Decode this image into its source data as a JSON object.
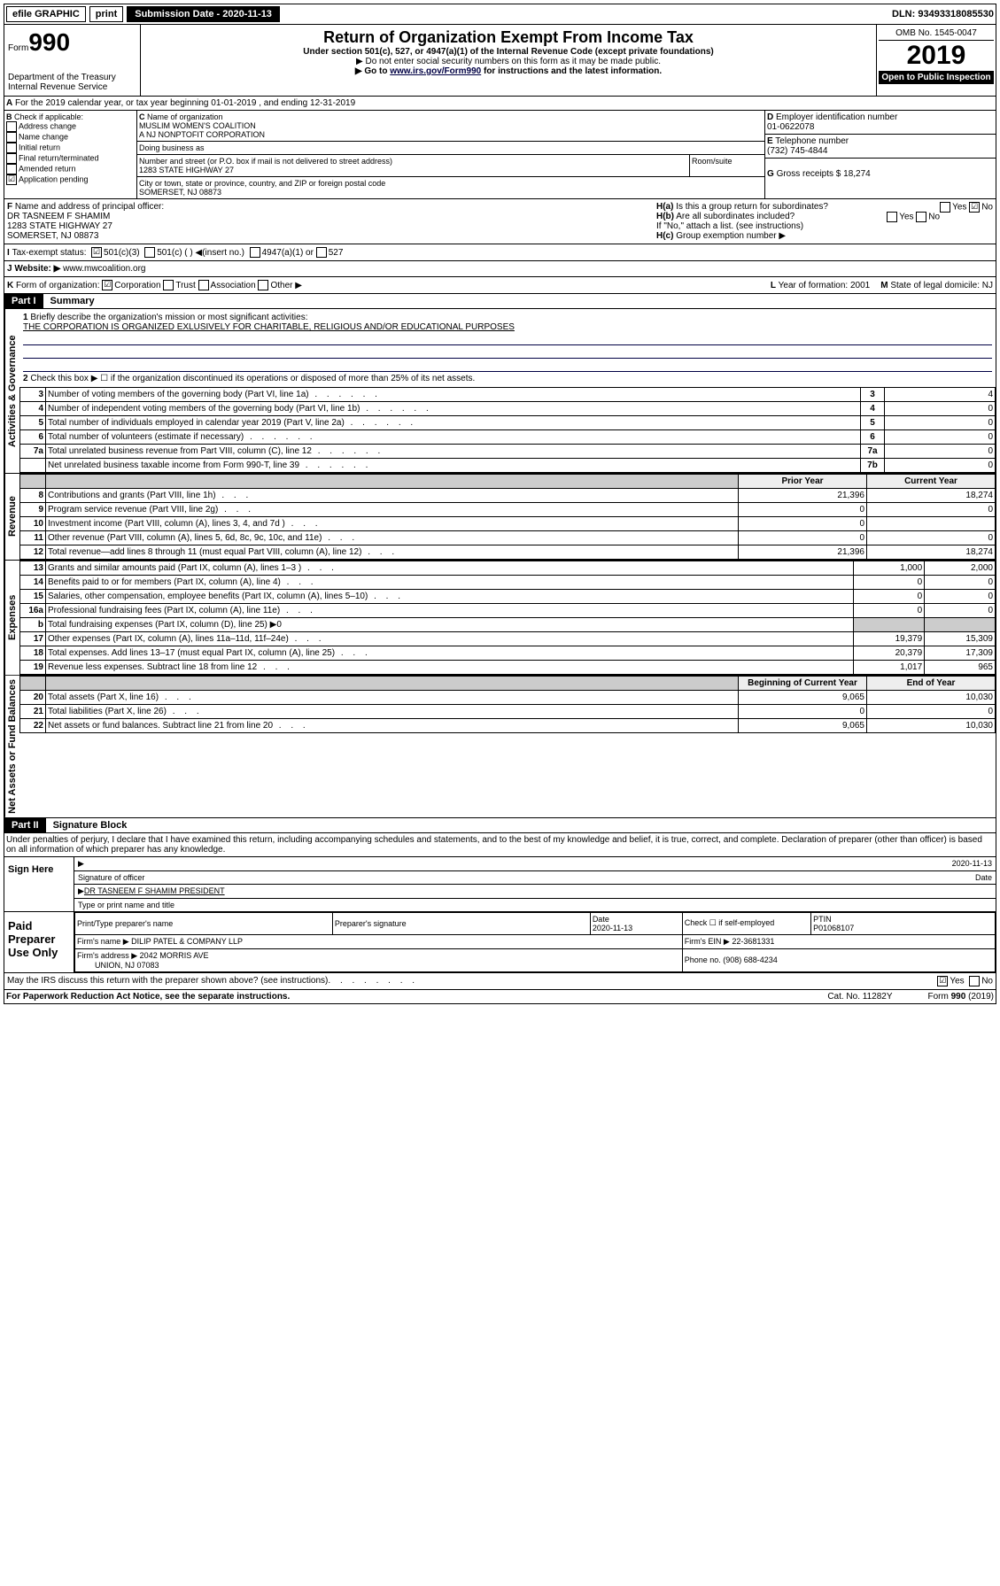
{
  "topbar": {
    "efile": "efile GRAPHIC",
    "print": "print",
    "subdate_label": "Submission Date - 2020-11-13",
    "dln": "DLN: 93493318085530"
  },
  "header": {
    "form_small": "Form",
    "form_big": "990",
    "dept1": "Department of the Treasury",
    "dept2": "Internal Revenue Service",
    "title": "Return of Organization Exempt From Income Tax",
    "sub1": "Under section 501(c), 527, or 4947(a)(1) of the Internal Revenue Code (except private foundations)",
    "sub2": "▶ Do not enter social security numbers on this form as it may be made public.",
    "sub3a": "▶ Go to ",
    "sub3link": "www.irs.gov/Form990",
    "sub3b": " for instructions and the latest information.",
    "omb": "OMB No. 1545-0047",
    "year": "2019",
    "open": "Open to Public Inspection"
  },
  "A": {
    "text": "For the 2019 calendar year, or tax year beginning 01-01-2019   , and ending 12-31-2019"
  },
  "B": {
    "label": "Check if applicable:",
    "opts": [
      "Address change",
      "Name change",
      "Initial return",
      "Final return/terminated",
      "Amended return",
      "Application pending"
    ],
    "o5checked": "☑"
  },
  "C": {
    "name_label": "Name of organization",
    "name1": "MUSLIM WOMEN'S COALITION",
    "name2": "A NJ NONPTOFIT CORPORATION",
    "dba": "Doing business as",
    "addr_label": "Number and street (or P.O. box if mail is not delivered to street address)",
    "room": "Room/suite",
    "addr": "1283 STATE HIGHWAY 27",
    "city_label": "City or town, state or province, country, and ZIP or foreign postal code",
    "city": "SOMERSET, NJ  08873"
  },
  "D": {
    "label": "Employer identification number",
    "val": "01-0622078"
  },
  "E": {
    "label": "Telephone number",
    "val": "(732) 745-4844"
  },
  "G": {
    "label": "Gross receipts $",
    "val": "18,274"
  },
  "F": {
    "label": "Name and address of principal officer:",
    "l1": "DR TASNEEM F SHAMIM",
    "l2": "1283 STATE HIGHWAY 27",
    "l3": "SOMERSET, NJ  08873"
  },
  "H": {
    "a": "Is this a group return for subordinates?",
    "b": "Are all subordinates included?",
    "bnote": "If \"No,\" attach a list. (see instructions)",
    "c": "Group exemption number ▶",
    "yes": "Yes",
    "no": "No"
  },
  "I": {
    "label": "Tax-exempt status:",
    "o1": "501(c)(3)",
    "o2": "501(c) (  ) ◀(insert no.)",
    "o3": "4947(a)(1) or",
    "o4": "527"
  },
  "J": {
    "label": "Website: ▶",
    "val": "www.mwcoalition.org"
  },
  "K": {
    "label": "Form of organization:",
    "o1": "Corporation",
    "o2": "Trust",
    "o3": "Association",
    "o4": "Other ▶"
  },
  "L": {
    "label": "Year of formation:",
    "val": "2001"
  },
  "M": {
    "label": "State of legal domicile:",
    "val": "NJ"
  },
  "part1": {
    "bar": "Part I",
    "title": "Summary"
  },
  "p1": {
    "tabs": {
      "ag": "Activities & Governance",
      "rev": "Revenue",
      "exp": "Expenses",
      "na": "Net Assets or Fund Balances"
    },
    "l1": "Briefly describe the organization's mission or most significant activities:",
    "l1v": "THE CORPORATION IS ORGANIZED EXLUSIVELY FOR CHARITABLE, RELIGIOUS AND/OR EDUCATIONAL PURPOSES",
    "l2": "Check this box ▶ ☐  if the organization discontinued its operations or disposed of more than 25% of its net assets.",
    "rows_ag": [
      {
        "n": "3",
        "t": "Number of voting members of the governing body (Part VI, line 1a)",
        "l": "3",
        "v": "4"
      },
      {
        "n": "4",
        "t": "Number of independent voting members of the governing body (Part VI, line 1b)",
        "l": "4",
        "v": "0"
      },
      {
        "n": "5",
        "t": "Total number of individuals employed in calendar year 2019 (Part V, line 2a)",
        "l": "5",
        "v": "0"
      },
      {
        "n": "6",
        "t": "Total number of volunteers (estimate if necessary)",
        "l": "6",
        "v": "0"
      },
      {
        "n": "7a",
        "t": "Total unrelated business revenue from Part VIII, column (C), line 12",
        "l": "7a",
        "v": "0"
      },
      {
        "n": "",
        "t": "Net unrelated business taxable income from Form 990-T, line 39",
        "l": "7b",
        "v": "0"
      }
    ],
    "hdr_prior": "Prior Year",
    "hdr_curr": "Current Year",
    "rows_rev": [
      {
        "n": "8",
        "t": "Contributions and grants (Part VIII, line 1h)",
        "p": "21,396",
        "c": "18,274"
      },
      {
        "n": "9",
        "t": "Program service revenue (Part VIII, line 2g)",
        "p": "0",
        "c": "0"
      },
      {
        "n": "10",
        "t": "Investment income (Part VIII, column (A), lines 3, 4, and 7d )",
        "p": "0",
        "c": ""
      },
      {
        "n": "11",
        "t": "Other revenue (Part VIII, column (A), lines 5, 6d, 8c, 9c, 10c, and 11e)",
        "p": "0",
        "c": "0"
      },
      {
        "n": "12",
        "t": "Total revenue—add lines 8 through 11 (must equal Part VIII, column (A), line 12)",
        "p": "21,396",
        "c": "18,274"
      }
    ],
    "rows_exp": [
      {
        "n": "13",
        "t": "Grants and similar amounts paid (Part IX, column (A), lines 1–3 )",
        "p": "1,000",
        "c": "2,000"
      },
      {
        "n": "14",
        "t": "Benefits paid to or for members (Part IX, column (A), line 4)",
        "p": "0",
        "c": "0"
      },
      {
        "n": "15",
        "t": "Salaries, other compensation, employee benefits (Part IX, column (A), lines 5–10)",
        "p": "0",
        "c": "0"
      },
      {
        "n": "16a",
        "t": "Professional fundraising fees (Part IX, column (A), line 11e)",
        "p": "0",
        "c": "0"
      },
      {
        "n": "b",
        "t": "Total fundraising expenses (Part IX, column (D), line 25) ▶0",
        "p": "",
        "c": "",
        "grey": true
      },
      {
        "n": "17",
        "t": "Other expenses (Part IX, column (A), lines 11a–11d, 11f–24e)",
        "p": "19,379",
        "c": "15,309"
      },
      {
        "n": "18",
        "t": "Total expenses. Add lines 13–17 (must equal Part IX, column (A), line 25)",
        "p": "20,379",
        "c": "17,309"
      },
      {
        "n": "19",
        "t": "Revenue less expenses. Subtract line 18 from line 12",
        "p": "1,017",
        "c": "965"
      }
    ],
    "hdr_beg": "Beginning of Current Year",
    "hdr_end": "End of Year",
    "rows_na": [
      {
        "n": "20",
        "t": "Total assets (Part X, line 16)",
        "p": "9,065",
        "c": "10,030"
      },
      {
        "n": "21",
        "t": "Total liabilities (Part X, line 26)",
        "p": "0",
        "c": "0"
      },
      {
        "n": "22",
        "t": "Net assets or fund balances. Subtract line 21 from line 20",
        "p": "9,065",
        "c": "10,030"
      }
    ]
  },
  "part2": {
    "bar": "Part II",
    "title": "Signature Block"
  },
  "sig": {
    "perjury": "Under penalties of perjury, I declare that I have examined this return, including accompanying schedules and statements, and to the best of my knowledge and belief, it is true, correct, and complete. Declaration of preparer (other than officer) is based on all information of which preparer has any knowledge.",
    "sign_here": "Sign Here",
    "sig_officer": "Signature of officer",
    "date": "2020-11-13",
    "date_lbl": "Date",
    "officer": "DR TASNEEM F SHAMIM PRESIDENT",
    "officer_lbl": "Type or print name and title"
  },
  "prep": {
    "label": "Paid Preparer Use Only",
    "h1": "Print/Type preparer's name",
    "h2": "Preparer's signature",
    "h3": "Date",
    "h4": "Check ☐ if self-employed",
    "h5": "PTIN",
    "date": "2020-11-13",
    "ptin": "P01068107",
    "firm_lbl": "Firm's name   ▶",
    "firm": "DILIP PATEL & COMPANY LLP",
    "ein_lbl": "Firm's EIN ▶",
    "ein": "22-3681331",
    "addr_lbl": "Firm's address ▶",
    "addr1": "2042 MORRIS AVE",
    "addr2": "UNION, NJ  07083",
    "phone_lbl": "Phone no.",
    "phone": "(908) 688-4234"
  },
  "discuss": {
    "t": "May the IRS discuss this return with the preparer shown above? (see instructions)",
    "yes": "Yes",
    "no": "No"
  },
  "foot": {
    "l": "For Paperwork Reduction Act Notice, see the separate instructions.",
    "m": "Cat. No. 11282Y",
    "r": "Form 990 (2019)"
  }
}
